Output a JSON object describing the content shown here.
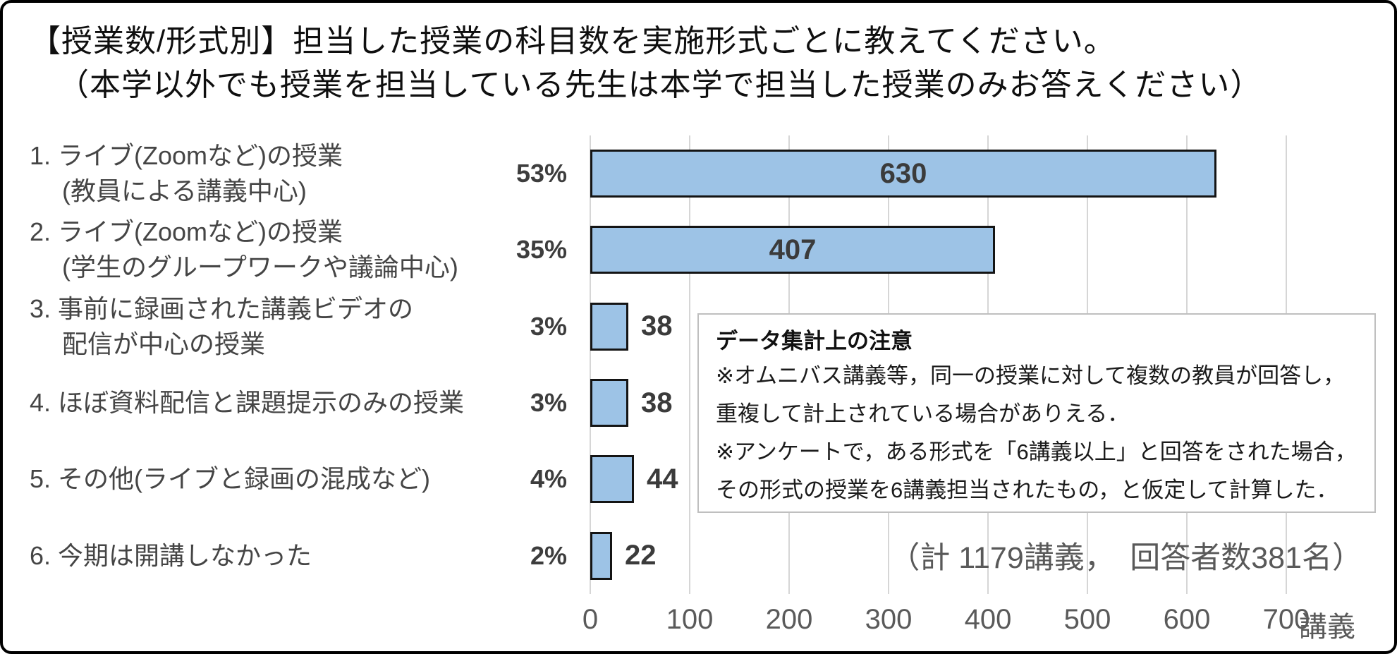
{
  "title": {
    "line1": "【授業数/形式別】担当した授業の科目数を実施形式ごとに教えてください。",
    "line2": "（本学以外でも授業を担当している先生は本学で担当した授業のみお答えください）"
  },
  "chart_data": {
    "type": "bar",
    "orientation": "horizontal",
    "categories": [
      "1. ライブ(Zoomなど)の授業（教員による講義中心）",
      "2. ライブ(Zoomなど)の授業（学生のグループワークや議論中心）",
      "3. 事前に録画された講義ビデオの配信が中心の授業",
      "4. ほぼ資料配信と課題提示のみの授業",
      "5. その他(ライブと録画の混成など)",
      "6. 今期は開講しなかった"
    ],
    "categories_lines": [
      [
        "1. ライブ(Zoomなど)の授業",
        "(教員による講義中心)"
      ],
      [
        "2. ライブ(Zoomなど)の授業",
        "(学生のグループワークや議論中心)"
      ],
      [
        "3. 事前に録画された講義ビデオの",
        "配信が中心の授業"
      ],
      [
        "4. ほぼ資料配信と課題提示のみの授業"
      ],
      [
        "5. その他(ライブと録画の混成など)"
      ],
      [
        "6. 今期は開講しなかった"
      ]
    ],
    "values": [
      630,
      407,
      38,
      38,
      44,
      22
    ],
    "percent_labels": [
      "53%",
      "35%",
      "3%",
      "3%",
      "4%",
      "2%"
    ],
    "xlim": [
      0,
      700
    ],
    "xticks": [
      0,
      100,
      200,
      300,
      400,
      500,
      600,
      700
    ],
    "x_unit": "講義",
    "grid": true,
    "legend": false,
    "bar_color": "#9DC3E6",
    "bar_border_color": "#141414",
    "grid_color": "#D6D6D6",
    "value_label_color": "#3B3B3B"
  },
  "note_box": {
    "title": "データ集計上の注意",
    "lines": [
      "※オムニバス講義等，同一の授業に対して複数の教員が回答し，",
      "重複して計上されている場合がありえる．",
      "※アンケートで，ある形式を「6講義以上」と回答をされた場合，",
      "その形式の授業を6講義担当されたもの，と仮定して計算した．"
    ]
  },
  "total_note": "（計 1179講義，　回答者数381名）"
}
